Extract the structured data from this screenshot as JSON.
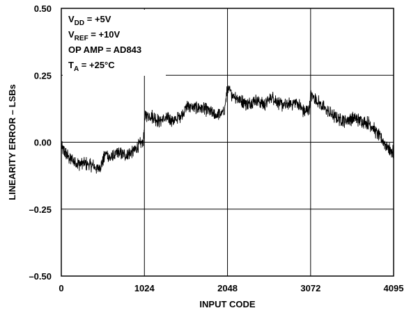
{
  "chart_data": {
    "type": "line",
    "title": "",
    "xlabel": "INPUT CODE",
    "ylabel": "LINEARITY ERROR – LSBs",
    "xlim": [
      0,
      4095
    ],
    "ylim": [
      -0.5,
      0.5
    ],
    "x_ticks": [
      0,
      1024,
      2048,
      3072,
      4095
    ],
    "x_tick_labels": [
      "0",
      "1024",
      "2048",
      "3072",
      "4095"
    ],
    "y_ticks": [
      0.5,
      0.25,
      0.0,
      -0.25,
      -0.5
    ],
    "y_tick_labels": [
      "0.50",
      "0.25",
      "0.00",
      "–0.25",
      "–0.50"
    ],
    "grid": true,
    "annotations": [
      {
        "main": "V",
        "sub": "DD",
        "rest": " = +5V"
      },
      {
        "main": "V",
        "sub": "REF",
        "rest": " = +10V"
      },
      {
        "main": "OP AMP = AD843",
        "sub": "",
        "rest": ""
      },
      {
        "main": "T",
        "sub": "A",
        "rest": " = +25°C"
      }
    ],
    "series": [
      {
        "values_note_hidden": false,
        "x": [
          0,
          100,
          200,
          300,
          400,
          450,
          500,
          550,
          600,
          700,
          800,
          900,
          1000,
          1015,
          1024,
          1040,
          1100,
          1200,
          1300,
          1400,
          1500,
          1560,
          1600,
          1700,
          1800,
          1900,
          2000,
          2020,
          2048,
          2100,
          2200,
          2300,
          2400,
          2500,
          2600,
          2700,
          2800,
          2900,
          3000,
          3060,
          3072,
          3100,
          3200,
          3300,
          3400,
          3500,
          3600,
          3700,
          3800,
          3900,
          3950,
          4000,
          4050,
          4095
        ],
        "y": [
          -0.02,
          -0.06,
          -0.08,
          -0.08,
          -0.09,
          -0.1,
          -0.08,
          -0.04,
          -0.06,
          -0.04,
          -0.05,
          -0.03,
          0.0,
          0.01,
          0.07,
          0.1,
          0.1,
          0.08,
          0.09,
          0.08,
          0.11,
          0.14,
          0.13,
          0.13,
          0.12,
          0.1,
          0.11,
          0.14,
          0.2,
          0.18,
          0.16,
          0.14,
          0.16,
          0.14,
          0.17,
          0.14,
          0.14,
          0.15,
          0.11,
          0.13,
          0.18,
          0.17,
          0.14,
          0.11,
          0.09,
          0.08,
          0.09,
          0.08,
          0.07,
          0.03,
          0.01,
          -0.01,
          -0.03,
          -0.04
        ],
        "noise_amplitude": 0.02
      }
    ]
  }
}
